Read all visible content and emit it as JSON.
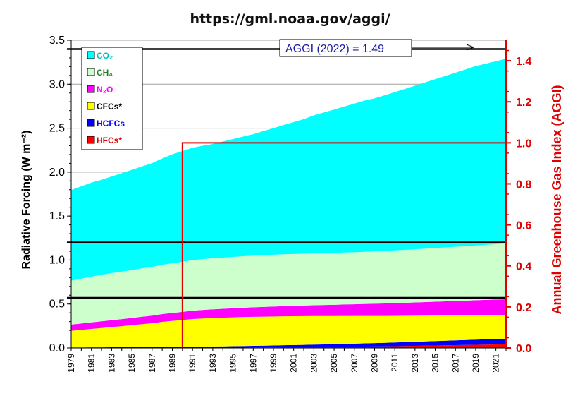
{
  "chart_data": {
    "type": "area",
    "title": "https://gml.noaa.gov/aggi/",
    "ylabel": "Radiative Forcing (W m⁻²)",
    "y2label": "Annual Greenhouse Gas Index (AGGI)",
    "ylim": [
      0,
      3.5
    ],
    "y2lim": [
      0,
      1.5
    ],
    "yticks": [
      "0.0",
      "0.5",
      "1.0",
      "1.5",
      "2.0",
      "2.5",
      "3.0",
      "3.5"
    ],
    "y2ticks": [
      "0.0",
      "0.2",
      "0.4",
      "0.6",
      "0.8",
      "1.0",
      "1.2",
      "1.4"
    ],
    "x": [
      1979,
      1980,
      1981,
      1982,
      1983,
      1984,
      1985,
      1986,
      1987,
      1988,
      1989,
      1990,
      1991,
      1992,
      1993,
      1994,
      1995,
      1996,
      1997,
      1998,
      1999,
      2000,
      2001,
      2002,
      2003,
      2004,
      2005,
      2006,
      2007,
      2008,
      2009,
      2010,
      2011,
      2012,
      2013,
      2014,
      2015,
      2016,
      2017,
      2018,
      2019,
      2020,
      2021,
      2022
    ],
    "xtick_labels": [
      "1979",
      "1981",
      "1983",
      "1985",
      "1987",
      "1989",
      "1991",
      "1993",
      "1995",
      "1997",
      "1999",
      "2001",
      "2003",
      "2005",
      "2007",
      "2009",
      "2011",
      "2013",
      "2015",
      "2017",
      "2019",
      "2021"
    ],
    "stacked": true,
    "series": [
      {
        "name": "HFCs*",
        "color": "#ff0000",
        "values": [
          0.0,
          0.0,
          0.0,
          0.0,
          0.0,
          0.0,
          0.0,
          0.001,
          0.001,
          0.001,
          0.001,
          0.001,
          0.001,
          0.001,
          0.002,
          0.002,
          0.003,
          0.004,
          0.005,
          0.006,
          0.007,
          0.008,
          0.009,
          0.01,
          0.011,
          0.012,
          0.013,
          0.014,
          0.015,
          0.016,
          0.017,
          0.018,
          0.02,
          0.022,
          0.024,
          0.026,
          0.028,
          0.03,
          0.032,
          0.034,
          0.036,
          0.038,
          0.04,
          0.042
        ]
      },
      {
        "name": "HCFCs",
        "color": "#0000ff",
        "values": [
          0.006,
          0.006,
          0.007,
          0.007,
          0.008,
          0.008,
          0.009,
          0.01,
          0.01,
          0.011,
          0.012,
          0.012,
          0.013,
          0.014,
          0.015,
          0.016,
          0.017,
          0.018,
          0.019,
          0.02,
          0.021,
          0.023,
          0.024,
          0.025,
          0.027,
          0.028,
          0.03,
          0.032,
          0.034,
          0.036,
          0.038,
          0.04,
          0.042,
          0.044,
          0.046,
          0.048,
          0.05,
          0.052,
          0.054,
          0.056,
          0.058,
          0.06,
          0.061,
          0.062
        ]
      },
      {
        "name": "CFCs*",
        "color": "#ffff00",
        "values": [
          0.19,
          0.2,
          0.21,
          0.22,
          0.23,
          0.24,
          0.25,
          0.26,
          0.27,
          0.285,
          0.295,
          0.305,
          0.315,
          0.32,
          0.323,
          0.326,
          0.328,
          0.33,
          0.33,
          0.33,
          0.33,
          0.329,
          0.328,
          0.327,
          0.325,
          0.323,
          0.32,
          0.318,
          0.315,
          0.312,
          0.309,
          0.306,
          0.303,
          0.3,
          0.297,
          0.294,
          0.291,
          0.288,
          0.285,
          0.282,
          0.28,
          0.277,
          0.275,
          0.272
        ]
      },
      {
        "name": "N₂O",
        "color": "#ff00ff",
        "values": [
          0.07,
          0.072,
          0.074,
          0.076,
          0.078,
          0.08,
          0.082,
          0.084,
          0.086,
          0.088,
          0.09,
          0.092,
          0.094,
          0.097,
          0.1,
          0.102,
          0.104,
          0.106,
          0.109,
          0.111,
          0.113,
          0.116,
          0.118,
          0.121,
          0.123,
          0.126,
          0.128,
          0.131,
          0.133,
          0.136,
          0.139,
          0.142,
          0.145,
          0.148,
          0.151,
          0.154,
          0.157,
          0.16,
          0.163,
          0.166,
          0.169,
          0.172,
          0.175,
          0.178
        ]
      },
      {
        "name": "CH₄",
        "color": "#ccffcc",
        "values": [
          0.5,
          0.51,
          0.52,
          0.53,
          0.535,
          0.54,
          0.545,
          0.55,
          0.555,
          0.56,
          0.565,
          0.57,
          0.575,
          0.578,
          0.58,
          0.582,
          0.584,
          0.586,
          0.588,
          0.589,
          0.59,
          0.59,
          0.59,
          0.59,
          0.59,
          0.59,
          0.59,
          0.591,
          0.592,
          0.594,
          0.596,
          0.598,
          0.6,
          0.602,
          0.605,
          0.608,
          0.611,
          0.614,
          0.617,
          0.62,
          0.623,
          0.626,
          0.63,
          0.635
        ]
      },
      {
        "name": "CO₂",
        "color": "#00ffff",
        "values": [
          1.03,
          1.05,
          1.07,
          1.08,
          1.1,
          1.12,
          1.14,
          1.16,
          1.18,
          1.21,
          1.24,
          1.26,
          1.28,
          1.29,
          1.3,
          1.32,
          1.34,
          1.36,
          1.38,
          1.41,
          1.44,
          1.47,
          1.5,
          1.53,
          1.57,
          1.6,
          1.63,
          1.66,
          1.69,
          1.72,
          1.74,
          1.77,
          1.8,
          1.83,
          1.86,
          1.89,
          1.92,
          1.95,
          1.98,
          2.01,
          2.04,
          2.06,
          2.08,
          2.1
        ]
      }
    ],
    "reference_lines": [
      {
        "axis": "left",
        "value": 3.4
      },
      {
        "axis": "left",
        "value": 1.2
      },
      {
        "axis": "left",
        "value": 0.57
      }
    ],
    "aggi_box": {
      "x_start": 1990,
      "y2_value": 1.0
    },
    "annotation": "AGGI (2022) = 1.49",
    "legend_position": "top-left",
    "grid": true
  }
}
